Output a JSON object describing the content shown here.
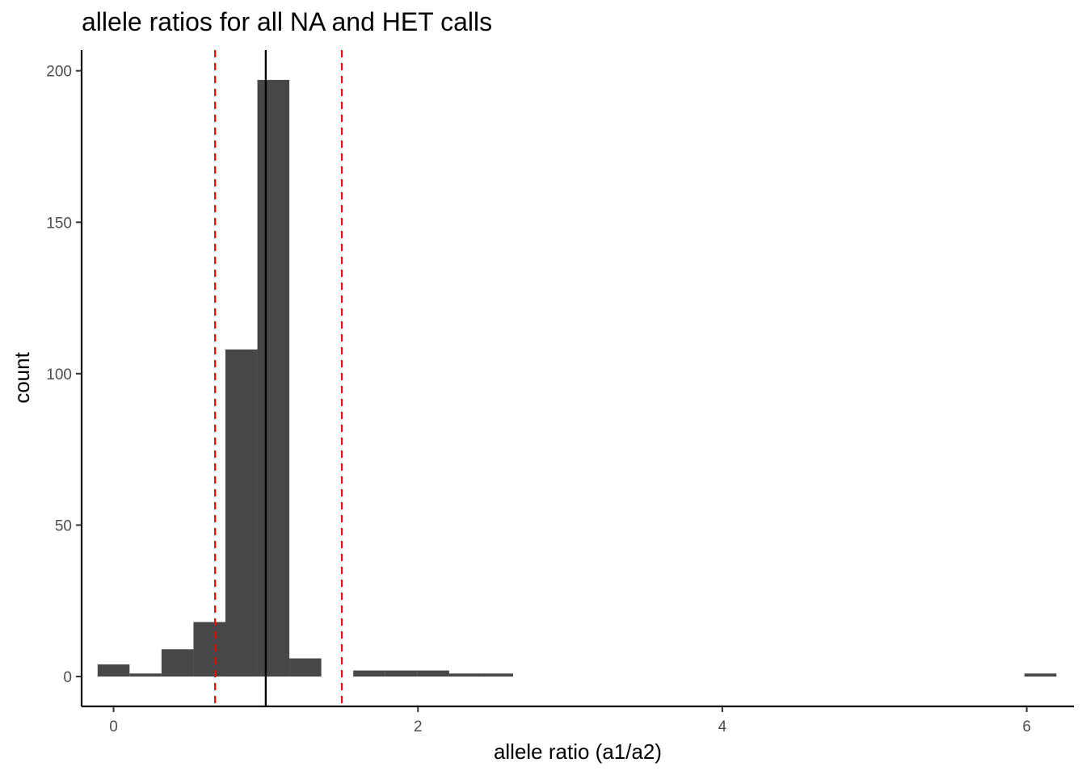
{
  "chart_data": {
    "type": "bar",
    "title": "allele ratios for all NA and HET calls",
    "xlabel": "allele ratio (a1/a2)",
    "ylabel": "count",
    "xlim": [
      -0.21,
      6.31
    ],
    "ylim": [
      -9.85,
      206.85
    ],
    "xticks": [
      0,
      2,
      4,
      6
    ],
    "yticks": [
      0,
      50,
      100,
      150,
      200
    ],
    "x_tick_labels": [
      "0",
      "2",
      "4",
      "6"
    ],
    "y_tick_labels": [
      "0",
      "50",
      "100",
      "150",
      "200"
    ],
    "bin_width": 0.21,
    "bins": [
      {
        "x0": -0.105,
        "x1": 0.105,
        "count": 4
      },
      {
        "x0": 0.105,
        "x1": 0.315,
        "count": 1
      },
      {
        "x0": 0.315,
        "x1": 0.525,
        "count": 9
      },
      {
        "x0": 0.525,
        "x1": 0.735,
        "count": 18
      },
      {
        "x0": 0.735,
        "x1": 0.945,
        "count": 108
      },
      {
        "x0": 0.945,
        "x1": 1.155,
        "count": 197
      },
      {
        "x0": 1.155,
        "x1": 1.365,
        "count": 6
      },
      {
        "x0": 1.365,
        "x1": 1.575,
        "count": 0
      },
      {
        "x0": 1.575,
        "x1": 1.785,
        "count": 2
      },
      {
        "x0": 1.785,
        "x1": 1.995,
        "count": 2
      },
      {
        "x0": 1.995,
        "x1": 2.205,
        "count": 2
      },
      {
        "x0": 2.205,
        "x1": 2.415,
        "count": 1
      },
      {
        "x0": 2.415,
        "x1": 2.625,
        "count": 1
      },
      {
        "x0": 5.985,
        "x1": 6.195,
        "count": 1
      }
    ],
    "reference_lines": [
      {
        "x": 0.667,
        "style": "dashed",
        "color": "#ff0000"
      },
      {
        "x": 1.0,
        "style": "solid",
        "color": "#000000"
      },
      {
        "x": 1.5,
        "style": "dashed",
        "color": "#ff0000"
      }
    ],
    "bar_color": "#474747",
    "grid": false,
    "legend": "none"
  }
}
